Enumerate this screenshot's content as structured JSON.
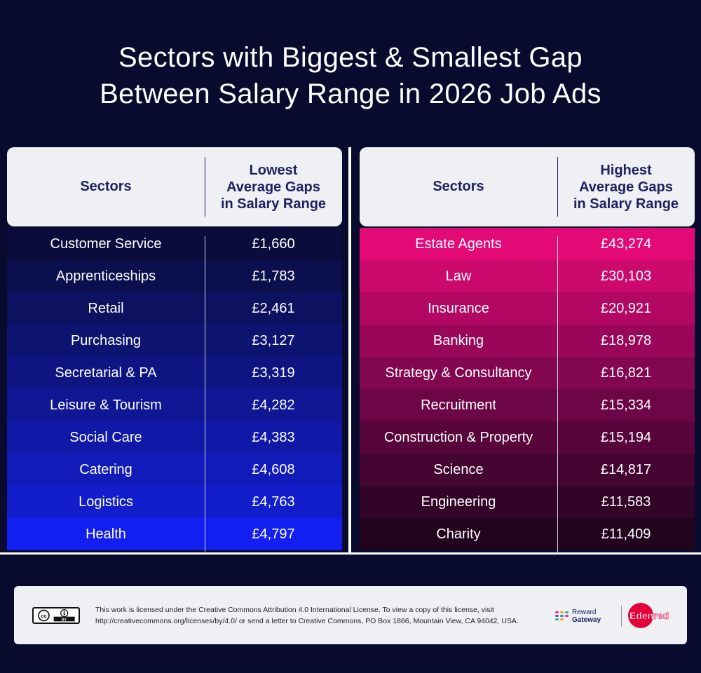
{
  "title_lines": [
    "Sectors with Biggest & Smallest Gap",
    "Between Salary Range in 2026 Job Ads"
  ],
  "chart_data": [
    {
      "type": "table",
      "header": {
        "col1": "Sectors",
        "col2_lines": [
          "Lowest",
          "Average Gaps",
          "in Salary Range"
        ]
      },
      "categories": [
        "Customer Service",
        "Apprenticeships",
        "Retail",
        "Purchasing",
        "Secretarial & PA",
        "Leisure & Tourism",
        "Social Care",
        "Catering",
        "Logistics",
        "Health"
      ],
      "values": [
        1660,
        1783,
        2461,
        3127,
        3319,
        4282,
        4383,
        4608,
        4763,
        4797
      ],
      "labels": [
        "£1,660",
        "£1,783",
        "£2,461",
        "£3,127",
        "£3,319",
        "£4,282",
        "£4,383",
        "£4,608",
        "£4,763",
        "£4,797"
      ],
      "colors": [
        "#0a0d3c",
        "#0b0f4e",
        "#0c1160",
        "#0d1371",
        "#0e1583",
        "#0f1795",
        "#1019a7",
        "#111bb9",
        "#121dcc",
        "#131ff0"
      ]
    },
    {
      "type": "table",
      "header": {
        "col1": "Sectors",
        "col2_lines": [
          "Highest",
          "Average Gaps",
          "in Salary Range"
        ]
      },
      "categories": [
        "Estate Agents",
        "Law",
        "Insurance",
        "Banking",
        "Strategy & Consultancy",
        "Recruitment",
        "Construction & Property",
        "Science",
        "Engineering",
        "Charity"
      ],
      "values": [
        43274,
        30103,
        20921,
        18978,
        16821,
        15334,
        15194,
        14817,
        11583,
        11409
      ],
      "labels": [
        "£43,274",
        "£30,103",
        "£20,921",
        "£18,978",
        "£16,821",
        "£15,334",
        "£15,194",
        "£14,817",
        "£11,583",
        "£11,409"
      ],
      "colors": [
        "#e30a78",
        "#cc0a6e",
        "#b20864",
        "#9a075a",
        "#830750",
        "#6d0646",
        "#58053c",
        "#440532",
        "#320428",
        "#23041f"
      ]
    }
  ],
  "footer": {
    "license_text": "This work is licensed under the Creative Commons Attribution 4.0 International License. To view a copy of this license, visit http://creativecommons.org/licenses/by/4.0/ or send a letter to Creative Commons, PO Box 1866, Mountain View, CA 94042, USA.",
    "cc_badge": [
      "cc",
      "BY"
    ],
    "logo1_lines": [
      "Reward",
      "Gateway"
    ],
    "logo2": "Edenred",
    "icons": [
      "creative-commons-badge-icon",
      "reward-gateway-logo-icon",
      "edenred-logo-icon"
    ]
  }
}
